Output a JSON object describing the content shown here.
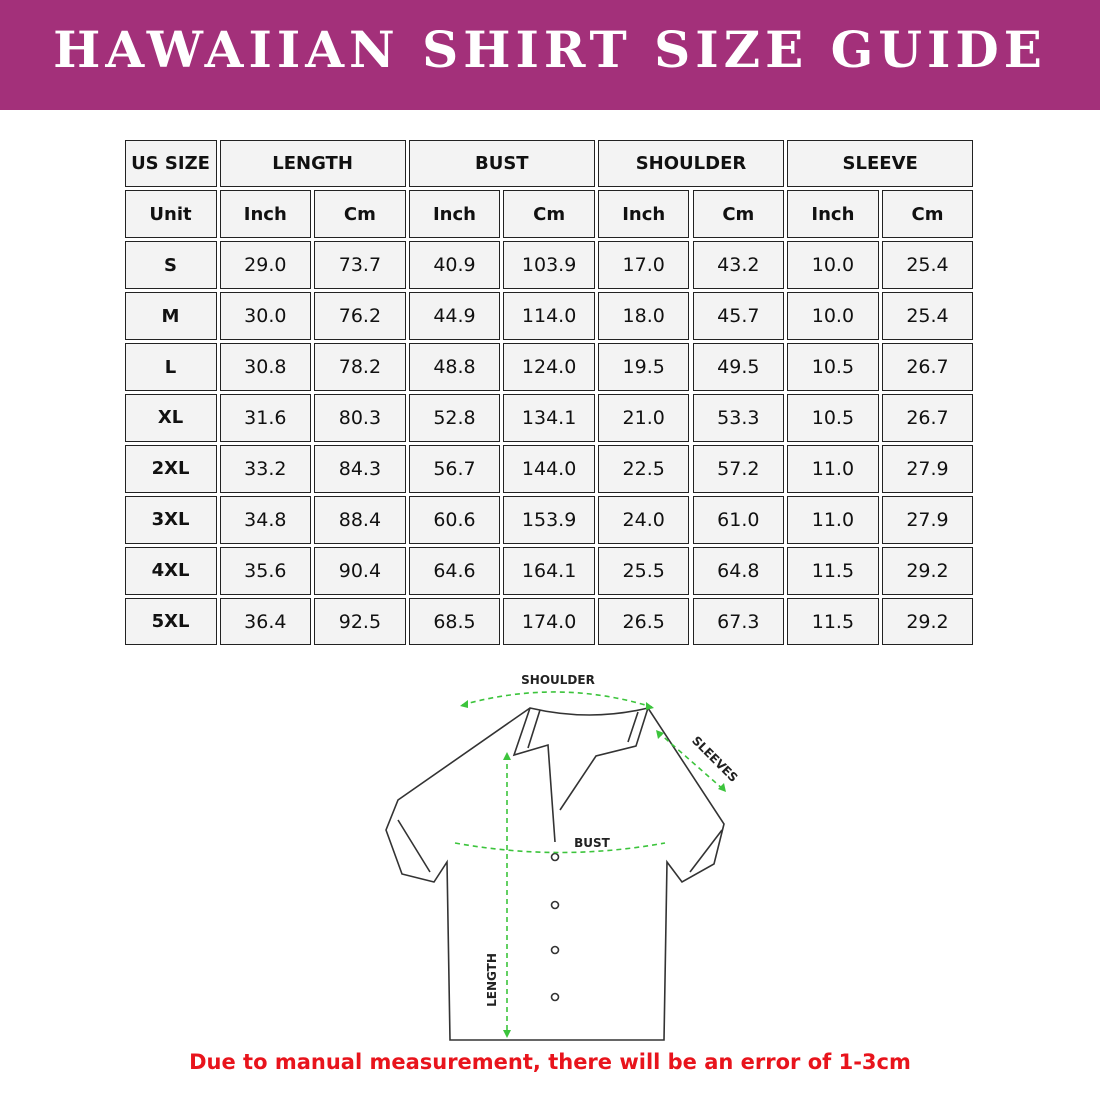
{
  "header": {
    "title": "HAWAIIAN SHIRT SIZE GUIDE"
  },
  "table": {
    "headers": [
      "US SIZE",
      "LENGTH",
      "BUST",
      "SHOULDER",
      "SLEEVE"
    ],
    "units": [
      "Unit",
      "Inch",
      "Cm",
      "Inch",
      "Cm",
      "Inch",
      "Cm",
      "Inch",
      "Cm"
    ],
    "rows": [
      [
        "S",
        "29.0",
        "73.7",
        "40.9",
        "103.9",
        "17.0",
        "43.2",
        "10.0",
        "25.4"
      ],
      [
        "M",
        "30.0",
        "76.2",
        "44.9",
        "114.0",
        "18.0",
        "45.7",
        "10.0",
        "25.4"
      ],
      [
        "L",
        "30.8",
        "78.2",
        "48.8",
        "124.0",
        "19.5",
        "49.5",
        "10.5",
        "26.7"
      ],
      [
        "XL",
        "31.6",
        "80.3",
        "52.8",
        "134.1",
        "21.0",
        "53.3",
        "10.5",
        "26.7"
      ],
      [
        "2XL",
        "33.2",
        "84.3",
        "56.7",
        "144.0",
        "22.5",
        "57.2",
        "11.0",
        "27.9"
      ],
      [
        "3XL",
        "34.8",
        "88.4",
        "60.6",
        "153.9",
        "24.0",
        "61.0",
        "11.0",
        "27.9"
      ],
      [
        "4XL",
        "35.6",
        "90.4",
        "64.6",
        "164.1",
        "25.5",
        "64.8",
        "11.5",
        "29.2"
      ],
      [
        "5XL",
        "36.4",
        "92.5",
        "68.5",
        "174.0",
        "26.5",
        "67.3",
        "11.5",
        "29.2"
      ]
    ]
  },
  "diagram": {
    "shoulder": "SHOULDER",
    "sleeves": "SLEEVES",
    "bust": "BUST",
    "length": "LENGTH"
  },
  "footer": {
    "note": "Due to manual measurement, there will be an error of 1-3cm"
  }
}
